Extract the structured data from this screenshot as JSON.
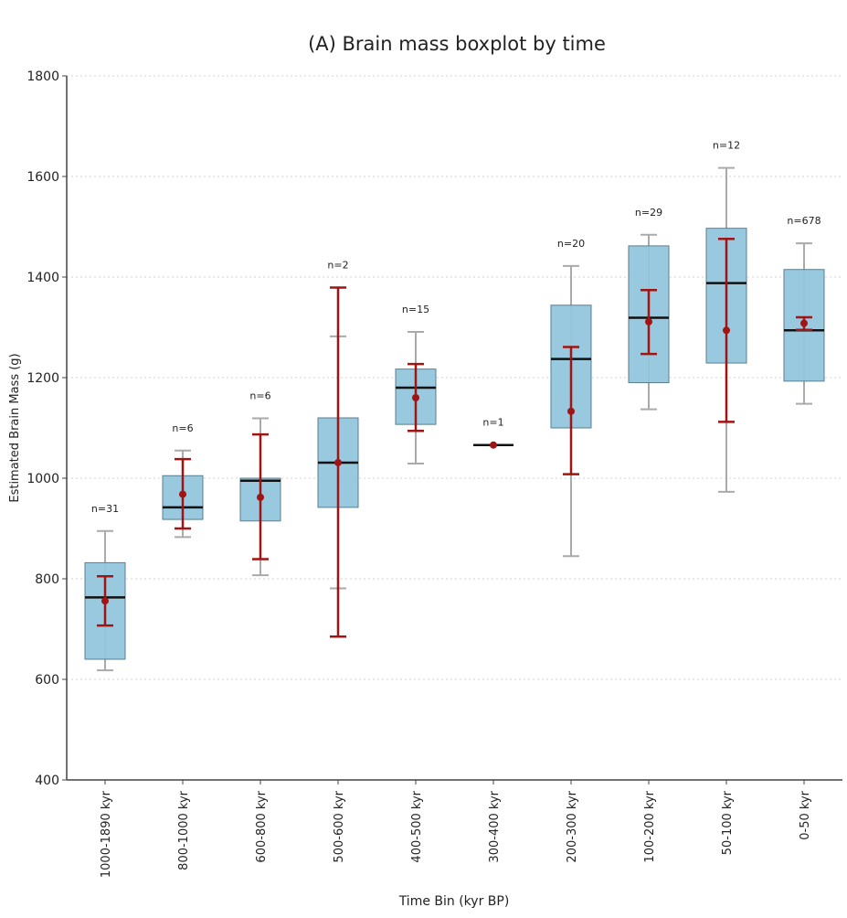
{
  "chart_data": {
    "type": "boxplot",
    "title": "(A) Brain mass boxplot by time",
    "xlabel": "Time Bin (kyr BP)",
    "ylabel": "Estimated Brain Mass (g)",
    "ylim": [
      400,
      1800
    ],
    "yticks": [
      400,
      600,
      800,
      1000,
      1200,
      1400,
      1600,
      1800
    ],
    "grid": "horizontal dotted",
    "colors": {
      "box_fill": "#92c6dd",
      "box_edge": "#5a7f8f",
      "median": "#111111",
      "whisker": "#aaaaaa",
      "mean_ci": "#a01414",
      "grid": "#d0d0d0"
    },
    "categories": [
      "1000-1890 kyr",
      "800-1000 kyr",
      "600-800 kyr",
      "500-600 kyr",
      "400-500 kyr",
      "300-400 kyr",
      "200-300 kyr",
      "100-200 kyr",
      "50-100 kyr",
      "0-50 kyr"
    ],
    "boxes": [
      {
        "n_label": "n=31",
        "whislo": 618,
        "q1": 640,
        "median": 763,
        "q3": 832,
        "whishi": 895,
        "mean": 756,
        "ci_low": 707,
        "ci_high": 805
      },
      {
        "n_label": "n=6",
        "whislo": 883,
        "q1": 918,
        "median": 942,
        "q3": 1005,
        "whishi": 1055,
        "mean": 968,
        "ci_low": 900,
        "ci_high": 1038
      },
      {
        "n_label": "n=6",
        "whislo": 807,
        "q1": 915,
        "median": 995,
        "q3": 1000,
        "whishi": 1119,
        "mean": 962,
        "ci_low": 839,
        "ci_high": 1087
      },
      {
        "n_label": "n=2",
        "whislo": 781,
        "q1": 942,
        "median": 1031,
        "q3": 1120,
        "whishi": 1282,
        "mean": 1031,
        "ci_low": 685,
        "ci_high": 1379
      },
      {
        "n_label": "n=15",
        "whislo": 1029,
        "q1": 1107,
        "median": 1180,
        "q3": 1217,
        "whishi": 1291,
        "mean": 1160,
        "ci_low": 1094,
        "ci_high": 1227
      },
      {
        "n_label": "n=1",
        "whislo": 1066,
        "q1": 1066,
        "median": 1066,
        "q3": 1066,
        "whishi": 1066,
        "mean": 1066,
        "ci_low": 1066,
        "ci_high": 1066
      },
      {
        "n_label": "n=20",
        "whislo": 845,
        "q1": 1100,
        "median": 1237,
        "q3": 1344,
        "whishi": 1422,
        "mean": 1133,
        "ci_low": 1008,
        "ci_high": 1261
      },
      {
        "n_label": "n=29",
        "whislo": 1137,
        "q1": 1190,
        "median": 1319,
        "q3": 1462,
        "whishi": 1484,
        "mean": 1311,
        "ci_low": 1247,
        "ci_high": 1374
      },
      {
        "n_label": "n=12",
        "whislo": 973,
        "q1": 1229,
        "median": 1388,
        "q3": 1497,
        "whishi": 1617,
        "mean": 1294,
        "ci_low": 1112,
        "ci_high": 1476
      },
      {
        "n_label": "n=678",
        "whislo": 1148,
        "q1": 1193,
        "median": 1294,
        "q3": 1415,
        "whishi": 1467,
        "mean": 1308,
        "ci_low": 1295,
        "ci_high": 1320
      }
    ]
  }
}
